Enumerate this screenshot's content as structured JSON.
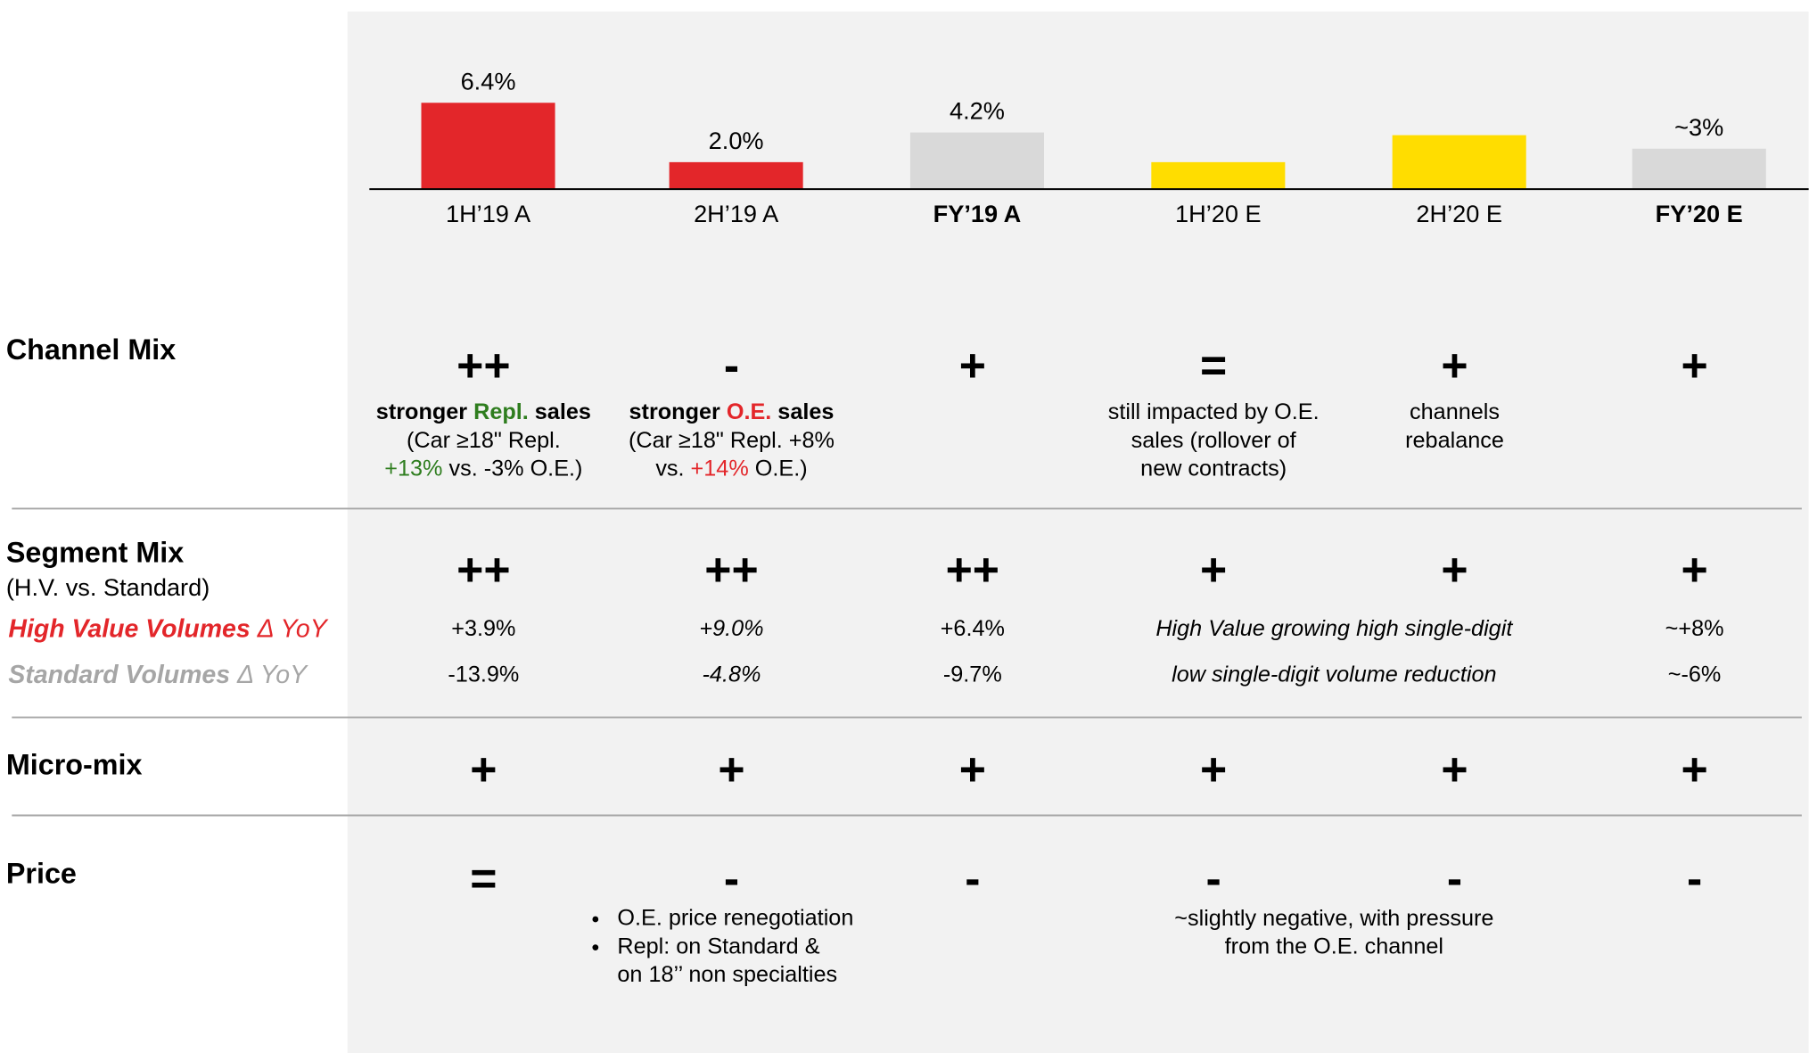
{
  "chart_data": {
    "type": "bar",
    "categories": [
      "1H’19 A",
      "2H’19 A",
      "FY’19 A",
      "1H’20 E",
      "2H’20 E",
      "FY’20 E"
    ],
    "values": [
      6.4,
      2.0,
      4.2,
      2.0,
      4.0,
      3.0
    ],
    "value_labels": [
      "6.4%",
      "2.0%",
      "4.2%",
      null,
      null,
      "~3%"
    ],
    "colors": [
      "#e3262a",
      "#e3262a",
      "#d9d9d9",
      "#ffdd00",
      "#ffdd00",
      "#d9d9d9"
    ],
    "bold": [
      false,
      false,
      true,
      false,
      false,
      true
    ],
    "ylim": [
      0,
      7
    ]
  },
  "table": {
    "rows": [
      {
        "label": "Channel Mix",
        "signs": [
          "++",
          "-",
          "+",
          "=",
          "+",
          "+"
        ],
        "notes": [
          {
            "cols": [
              0
            ],
            "lines": [
              [
                {
                  "text": "stronger ",
                  "style": "b"
                },
                {
                  "text": "Repl.",
                  "style": "bg"
                },
                {
                  "text": " sales",
                  "style": "b"
                }
              ],
              [
                {
                  "text": "(Car ≥18\" Repl.",
                  "style": "n"
                }
              ],
              [
                {
                  "text": "+13%",
                  "style": "g"
                },
                {
                  "text": " vs. -3% O.E.)",
                  "style": "n"
                }
              ]
            ]
          },
          {
            "cols": [
              1
            ],
            "lines": [
              [
                {
                  "text": "stronger ",
                  "style": "b"
                },
                {
                  "text": "O.E.",
                  "style": "br"
                },
                {
                  "text": " sales",
                  "style": "b"
                }
              ],
              [
                {
                  "text": "(Car ≥18\" Repl. +8%",
                  "style": "n"
                }
              ],
              [
                {
                  "text": "vs. ",
                  "style": "n"
                },
                {
                  "text": "+14%",
                  "style": "r"
                },
                {
                  "text": " O.E.)",
                  "style": "n"
                }
              ]
            ]
          },
          {
            "cols": [
              3
            ],
            "lines": [
              [
                {
                  "text": "still impacted by O.E.",
                  "style": "n"
                }
              ],
              [
                {
                  "text": "sales (rollover of",
                  "style": "n"
                }
              ],
              [
                {
                  "text": "new contracts)",
                  "style": "n"
                }
              ]
            ]
          },
          {
            "cols": [
              4
            ],
            "lines": [
              [
                {
                  "text": "channels",
                  "style": "n"
                }
              ],
              [
                {
                  "text": "rebalance",
                  "style": "n"
                }
              ]
            ]
          }
        ]
      },
      {
        "label": "Segment Mix",
        "sublabel": "(H.V. vs. Standard)",
        "signs": [
          "++",
          "++",
          "++",
          "+",
          "+",
          "+"
        ],
        "metrics": [
          {
            "label": [
              {
                "text": "High Value Volumes",
                "style": "bi"
              },
              {
                "text": " Δ YoY",
                "style": "i"
              }
            ],
            "color": "#e3262a",
            "cells": [
              {
                "cols": [
                  0
                ],
                "text": "+3.9%",
                "style": "n"
              },
              {
                "cols": [
                  1
                ],
                "text": "+9.0%",
                "style": "i"
              },
              {
                "cols": [
                  2
                ],
                "text": "+6.4%",
                "style": "n"
              },
              {
                "cols": [
                  3,
                  4
                ],
                "text": "High Value growing high single-digit",
                "style": "i"
              },
              {
                "cols": [
                  5
                ],
                "text": "~+8%",
                "style": "n"
              }
            ]
          },
          {
            "label": [
              {
                "text": "Standard Volumes",
                "style": "bi"
              },
              {
                "text": " Δ YoY",
                "style": "i"
              }
            ],
            "color": "#a6a6a6",
            "cells": [
              {
                "cols": [
                  0
                ],
                "text": "-13.9%",
                "style": "n"
              },
              {
                "cols": [
                  1
                ],
                "text": "-4.8%",
                "style": "i"
              },
              {
                "cols": [
                  2
                ],
                "text": "-9.7%",
                "style": "n"
              },
              {
                "cols": [
                  3,
                  4
                ],
                "text": "low single-digit volume reduction",
                "style": "i"
              },
              {
                "cols": [
                  5
                ],
                "text": "~-6%",
                "style": "n"
              }
            ]
          }
        ]
      },
      {
        "label": "Micro-mix",
        "signs": [
          "+",
          "+",
          "+",
          "+",
          "+",
          "+"
        ]
      },
      {
        "label": "Price",
        "signs": [
          "=",
          "-",
          "-",
          "-",
          "-",
          "-"
        ],
        "notes": [
          {
            "cols": [
              1
            ],
            "items": [
              [
                "O.E. price renegotiation"
              ],
              [
                "Repl: on Standard &",
                "on 18’’ non specialties"
              ]
            ]
          },
          {
            "cols": [
              3,
              4
            ],
            "lines": [
              [
                {
                  "text": "~slightly negative, with pressure",
                  "style": "n"
                }
              ],
              [
                {
                  "text": "from the O.E. channel",
                  "style": "n"
                }
              ]
            ]
          }
        ]
      }
    ]
  }
}
